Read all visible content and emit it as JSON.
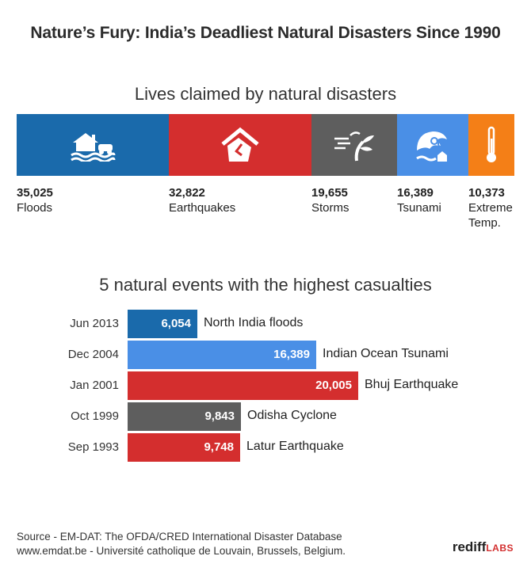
{
  "title": "Nature’s Fury: India’s Deadliest Natural Disasters Since 1990",
  "colors": {
    "floods": "#1a6aab",
    "earthquakes": "#d42e2e",
    "storms": "#5e5e5e",
    "tsunami": "#4a8fe6",
    "extreme": "#f47f17"
  },
  "chart_data": [
    {
      "type": "bar",
      "orientation": "stacked-horizontal",
      "title": "Lives claimed by natural disasters",
      "categories": [
        "Floods",
        "Earthquakes",
        "Storms",
        "Tsunami",
        "Extreme Temp."
      ],
      "labels": [
        {
          "number": "35,025",
          "name": "Floods",
          "icon": "flood-house-icon",
          "color_key": "floods"
        },
        {
          "number": "32,822",
          "name": "Earthquakes",
          "icon": "collapsing-house-icon",
          "color_key": "earthquakes"
        },
        {
          "number": "19,655",
          "name": "Storms",
          "icon": "wind-tree-icon",
          "color_key": "storms"
        },
        {
          "number": "16,389",
          "name": "Tsunami",
          "icon": "wave-house-icon",
          "color_key": "tsunami"
        },
        {
          "number": "10,373",
          "name_lines": [
            "Extreme",
            "Temp."
          ],
          "icon": "thermometer-icon",
          "color_key": "extreme"
        }
      ],
      "values": [
        35025,
        32822,
        19655,
        16389,
        10373
      ]
    },
    {
      "type": "bar",
      "orientation": "horizontal",
      "title": "5 natural events with the highest casualties",
      "rows": [
        {
          "date": "Jun 2013",
          "value": 6054,
          "label": "6,054",
          "name": "North India floods",
          "color_key": "floods"
        },
        {
          "date": "Dec 2004",
          "value": 16389,
          "label": "16,389",
          "name": "Indian Ocean Tsunami",
          "color_key": "tsunami"
        },
        {
          "date": "Jan 2001",
          "value": 20005,
          "label": "20,005",
          "name": "Bhuj Earthquake",
          "color_key": "earthquakes"
        },
        {
          "date": "Oct 1999",
          "value": 9843,
          "label": "9,843",
          "name": "Odisha Cyclone",
          "color_key": "storms"
        },
        {
          "date": "Sep 1993",
          "value": 9748,
          "label": "9,748",
          "name": "Latur Earthquake",
          "color_key": "earthquakes"
        }
      ]
    }
  ],
  "source": {
    "line1": "Source - EM-DAT: The OFDA/CRED International Disaster Database",
    "line2": "www.emdat.be - Université catholique de Louvain, Brussels, Belgium."
  },
  "logo": {
    "main": "rediff",
    "sub": "LABS"
  }
}
